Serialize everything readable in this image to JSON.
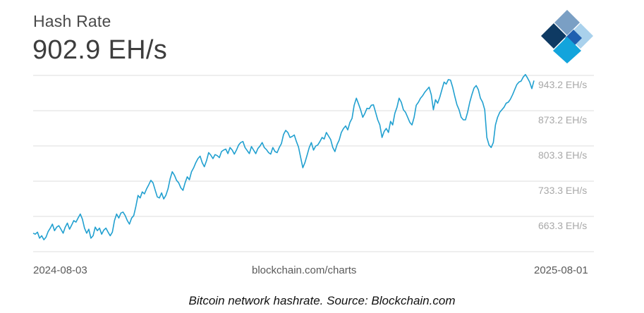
{
  "header": {
    "title": "Hash Rate",
    "current_value": "902.9 EH/s"
  },
  "logo": {
    "icon": "blockchain-logo-icon",
    "colors": [
      "#0e3a63",
      "#1f5fb0",
      "#7a9fc4",
      "#12a4dc",
      "#a9d1ec"
    ]
  },
  "source_label": "blockchain.com/charts",
  "caption": "Bitcoin network hashrate. Source: Blockchain.com",
  "chart_data": {
    "type": "line",
    "title": "Hash Rate",
    "x_start_label": "2024-08-03",
    "x_end_label": "2025-08-01",
    "x_range": [
      "2024-08-03",
      "2025-08-01"
    ],
    "y_unit": "EH/s",
    "y_ticks": [
      {
        "value": 943.2,
        "label": "943.2 EH/s"
      },
      {
        "value": 873.2,
        "label": "873.2 EH/s"
      },
      {
        "value": 803.3,
        "label": "803.3 EH/s"
      },
      {
        "value": 733.3,
        "label": "733.3 EH/s"
      },
      {
        "value": 663.3,
        "label": "663.3 EH/s"
      }
    ],
    "ylim": [
      593.3,
      943.2
    ],
    "grid": true,
    "line_color": "#21a0d0",
    "series": [
      {
        "values": [
          630,
          628,
          632,
          620,
          625,
          617,
          622,
          633,
          640,
          648,
          635,
          642,
          645,
          638,
          630,
          642,
          650,
          638,
          646,
          655,
          652,
          660,
          668,
          658,
          640,
          630,
          638,
          620,
          625,
          642,
          635,
          640,
          628,
          636,
          640,
          632,
          625,
          632,
          655,
          668,
          660,
          670,
          672,
          665,
          655,
          648,
          660,
          665,
          683,
          705,
          700,
          712,
          708,
          718,
          726,
          735,
          730,
          716,
          702,
          700,
          710,
          698,
          705,
          718,
          738,
          752,
          745,
          735,
          730,
          720,
          715,
          730,
          742,
          736,
          752,
          760,
          770,
          778,
          783,
          770,
          762,
          774,
          790,
          785,
          778,
          786,
          784,
          780,
          792,
          795,
          797,
          788,
          800,
          795,
          787,
          795,
          805,
          810,
          812,
          800,
          794,
          788,
          802,
          795,
          788,
          798,
          803,
          810,
          800,
          796,
          790,
          787,
          800,
          792,
          790,
          800,
          808,
          826,
          834,
          830,
          820,
          822,
          825,
          812,
          801,
          780,
          760,
          770,
          785,
          800,
          810,
          795,
          803,
          805,
          812,
          820,
          817,
          830,
          823,
          816,
          800,
          792,
          806,
          815,
          830,
          838,
          843,
          835,
          850,
          858,
          884,
          898,
          887,
          875,
          860,
          868,
          878,
          877,
          884,
          885,
          870,
          855,
          845,
          820,
          832,
          838,
          830,
          852,
          845,
          868,
          880,
          898,
          890,
          875,
          870,
          860,
          850,
          845,
          860,
          884,
          890,
          898,
          903,
          910,
          915,
          920,
          905,
          875,
          895,
          888,
          900,
          915,
          930,
          926,
          935,
          934,
          920,
          902,
          885,
          875,
          860,
          855,
          855,
          870,
          890,
          905,
          918,
          923,
          915,
          898,
          890,
          875,
          820,
          805,
          800,
          810,
          845,
          860,
          870,
          875,
          880,
          888,
          890,
          896,
          905,
          915,
          925,
          930,
          932,
          940,
          945,
          938,
          930,
          917,
          933
        ]
      }
    ],
    "current_value": 902.9
  }
}
